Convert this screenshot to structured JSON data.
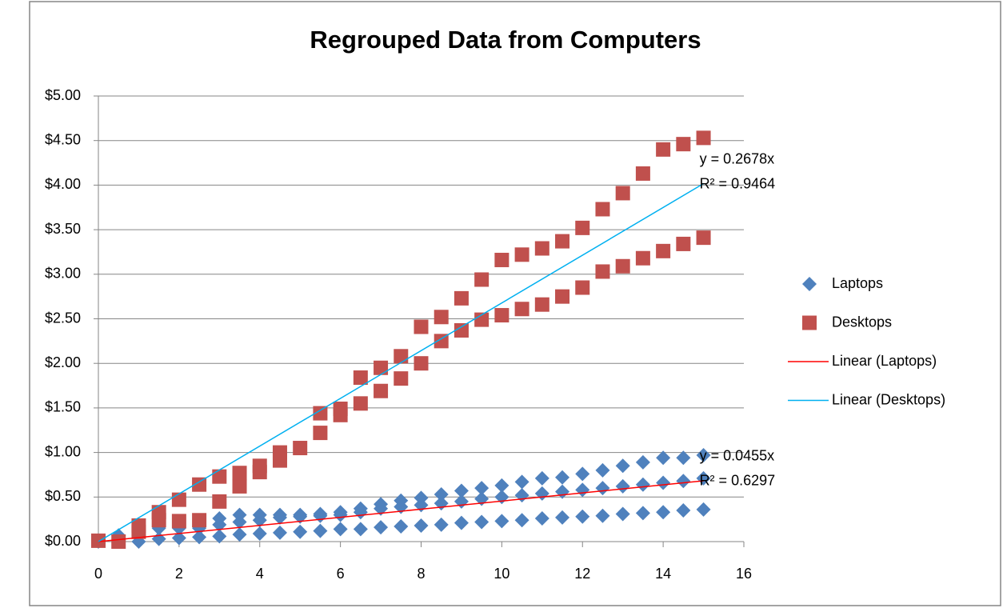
{
  "chart_data": {
    "type": "scatter",
    "title": "Regrouped Data from Computers",
    "xlim": [
      0,
      16
    ],
    "xticks": [
      0,
      2,
      4,
      6,
      8,
      10,
      12,
      14,
      16
    ],
    "ylim": [
      0,
      5
    ],
    "yticks": [
      {
        "value": 0,
        "label": "$0.00"
      },
      {
        "value": 0.5,
        "label": "$0.50"
      },
      {
        "value": 1,
        "label": "$1.00"
      },
      {
        "value": 1.5,
        "label": "$1.50"
      },
      {
        "value": 2,
        "label": "$2.00"
      },
      {
        "value": 2.5,
        "label": "$2.50"
      },
      {
        "value": 3,
        "label": "$3.00"
      },
      {
        "value": 3.5,
        "label": "$3.50"
      },
      {
        "value": 4,
        "label": "$4.00"
      },
      {
        "value": 4.5,
        "label": "$4.50"
      },
      {
        "value": 5,
        "label": "$5.00"
      }
    ],
    "grid": true,
    "series": [
      {
        "name": "Laptops",
        "color": "#4f81bd",
        "marker": "diamond",
        "x": [
          0,
          0.5,
          1,
          1,
          1.5,
          1.5,
          2,
          2,
          2.5,
          2.5,
          3,
          3,
          3,
          3.5,
          3.5,
          3.5,
          4,
          4,
          4,
          4.5,
          4.5,
          4.5,
          5,
          5,
          5,
          5.5,
          5.5,
          5.5,
          6,
          6,
          6,
          6.5,
          6.5,
          6.5,
          7,
          7,
          7,
          7.5,
          7.5,
          7.5,
          8,
          8,
          8,
          8.5,
          8.5,
          8.5,
          9,
          9,
          9,
          9.5,
          9.5,
          9.5,
          10,
          10,
          10,
          10.5,
          10.5,
          10.5,
          11,
          11,
          11,
          11.5,
          11.5,
          11.5,
          12,
          12,
          12,
          12.5,
          12.5,
          12.5,
          13,
          13,
          13,
          13.5,
          13.5,
          13.5,
          14,
          14,
          14,
          14.5,
          14.5,
          14.5,
          15,
          15,
          15
        ],
        "values": [
          0,
          0.07,
          0,
          0.1,
          0.03,
          0.15,
          0.04,
          0.15,
          0.05,
          0.15,
          0.06,
          0.19,
          0.26,
          0.08,
          0.22,
          0.3,
          0.09,
          0.24,
          0.3,
          0.1,
          0.27,
          0.3,
          0.11,
          0.28,
          0.3,
          0.12,
          0.29,
          0.31,
          0.14,
          0.3,
          0.33,
          0.14,
          0.33,
          0.37,
          0.16,
          0.37,
          0.42,
          0.17,
          0.39,
          0.46,
          0.18,
          0.41,
          0.49,
          0.19,
          0.43,
          0.53,
          0.21,
          0.45,
          0.57,
          0.22,
          0.48,
          0.6,
          0.23,
          0.5,
          0.63,
          0.24,
          0.52,
          0.67,
          0.26,
          0.54,
          0.71,
          0.27,
          0.56,
          0.72,
          0.28,
          0.58,
          0.76,
          0.29,
          0.6,
          0.8,
          0.31,
          0.62,
          0.85,
          0.32,
          0.64,
          0.89,
          0.33,
          0.66,
          0.94,
          0.35,
          0.68,
          0.94,
          0.36,
          0.71,
          0.97
        ]
      },
      {
        "name": "Desktops",
        "color": "#c0504d",
        "marker": "square",
        "x": [
          0,
          0.5,
          1,
          1,
          1.5,
          1.5,
          2,
          2,
          2.5,
          2.5,
          3,
          3,
          3.5,
          3.5,
          4,
          4,
          4.5,
          4.5,
          5,
          5.5,
          5.5,
          6,
          6,
          6.5,
          6.5,
          7,
          7,
          7.5,
          7.5,
          8,
          8,
          8.5,
          8.5,
          9,
          9,
          9.5,
          9.5,
          10,
          10,
          10.5,
          10.5,
          11,
          11,
          11.5,
          11.5,
          12,
          12,
          12.5,
          12.5,
          13,
          13,
          13.5,
          13.5,
          14,
          14,
          14.5,
          14.5,
          15,
          15
        ],
        "values": [
          0.01,
          0,
          0.11,
          0.18,
          0.24,
          0.33,
          0.23,
          0.47,
          0.24,
          0.64,
          0.45,
          0.73,
          0.62,
          0.77,
          0.78,
          0.85,
          0.91,
          1,
          1.05,
          1.22,
          1.44,
          1.42,
          1.49,
          1.55,
          1.84,
          1.69,
          1.95,
          1.83,
          2.08,
          2,
          2.41,
          2.25,
          2.52,
          2.37,
          2.73,
          2.49,
          2.94,
          2.54,
          3.16,
          2.61,
          3.22,
          2.66,
          3.29,
          2.75,
          3.37,
          2.85,
          3.52,
          3.03,
          3.73,
          3.09,
          3.91,
          3.18,
          4.13,
          3.26,
          4.4,
          3.34,
          4.46,
          3.41,
          4.53
        ]
      }
    ],
    "trendlines": [
      {
        "name": "Linear (Laptops)",
        "color": "#ff0000",
        "slope": 0.0455,
        "x_range": [
          0,
          15
        ],
        "equation": "y = 0.0455x",
        "r2": "R² = 0.6297"
      },
      {
        "name": "Linear (Desktops)",
        "color": "#00b0f0",
        "slope": 0.2678,
        "x_range": [
          0,
          15
        ],
        "equation": "y = 0.2678x",
        "r2": "R² = 0.9464"
      }
    ]
  }
}
